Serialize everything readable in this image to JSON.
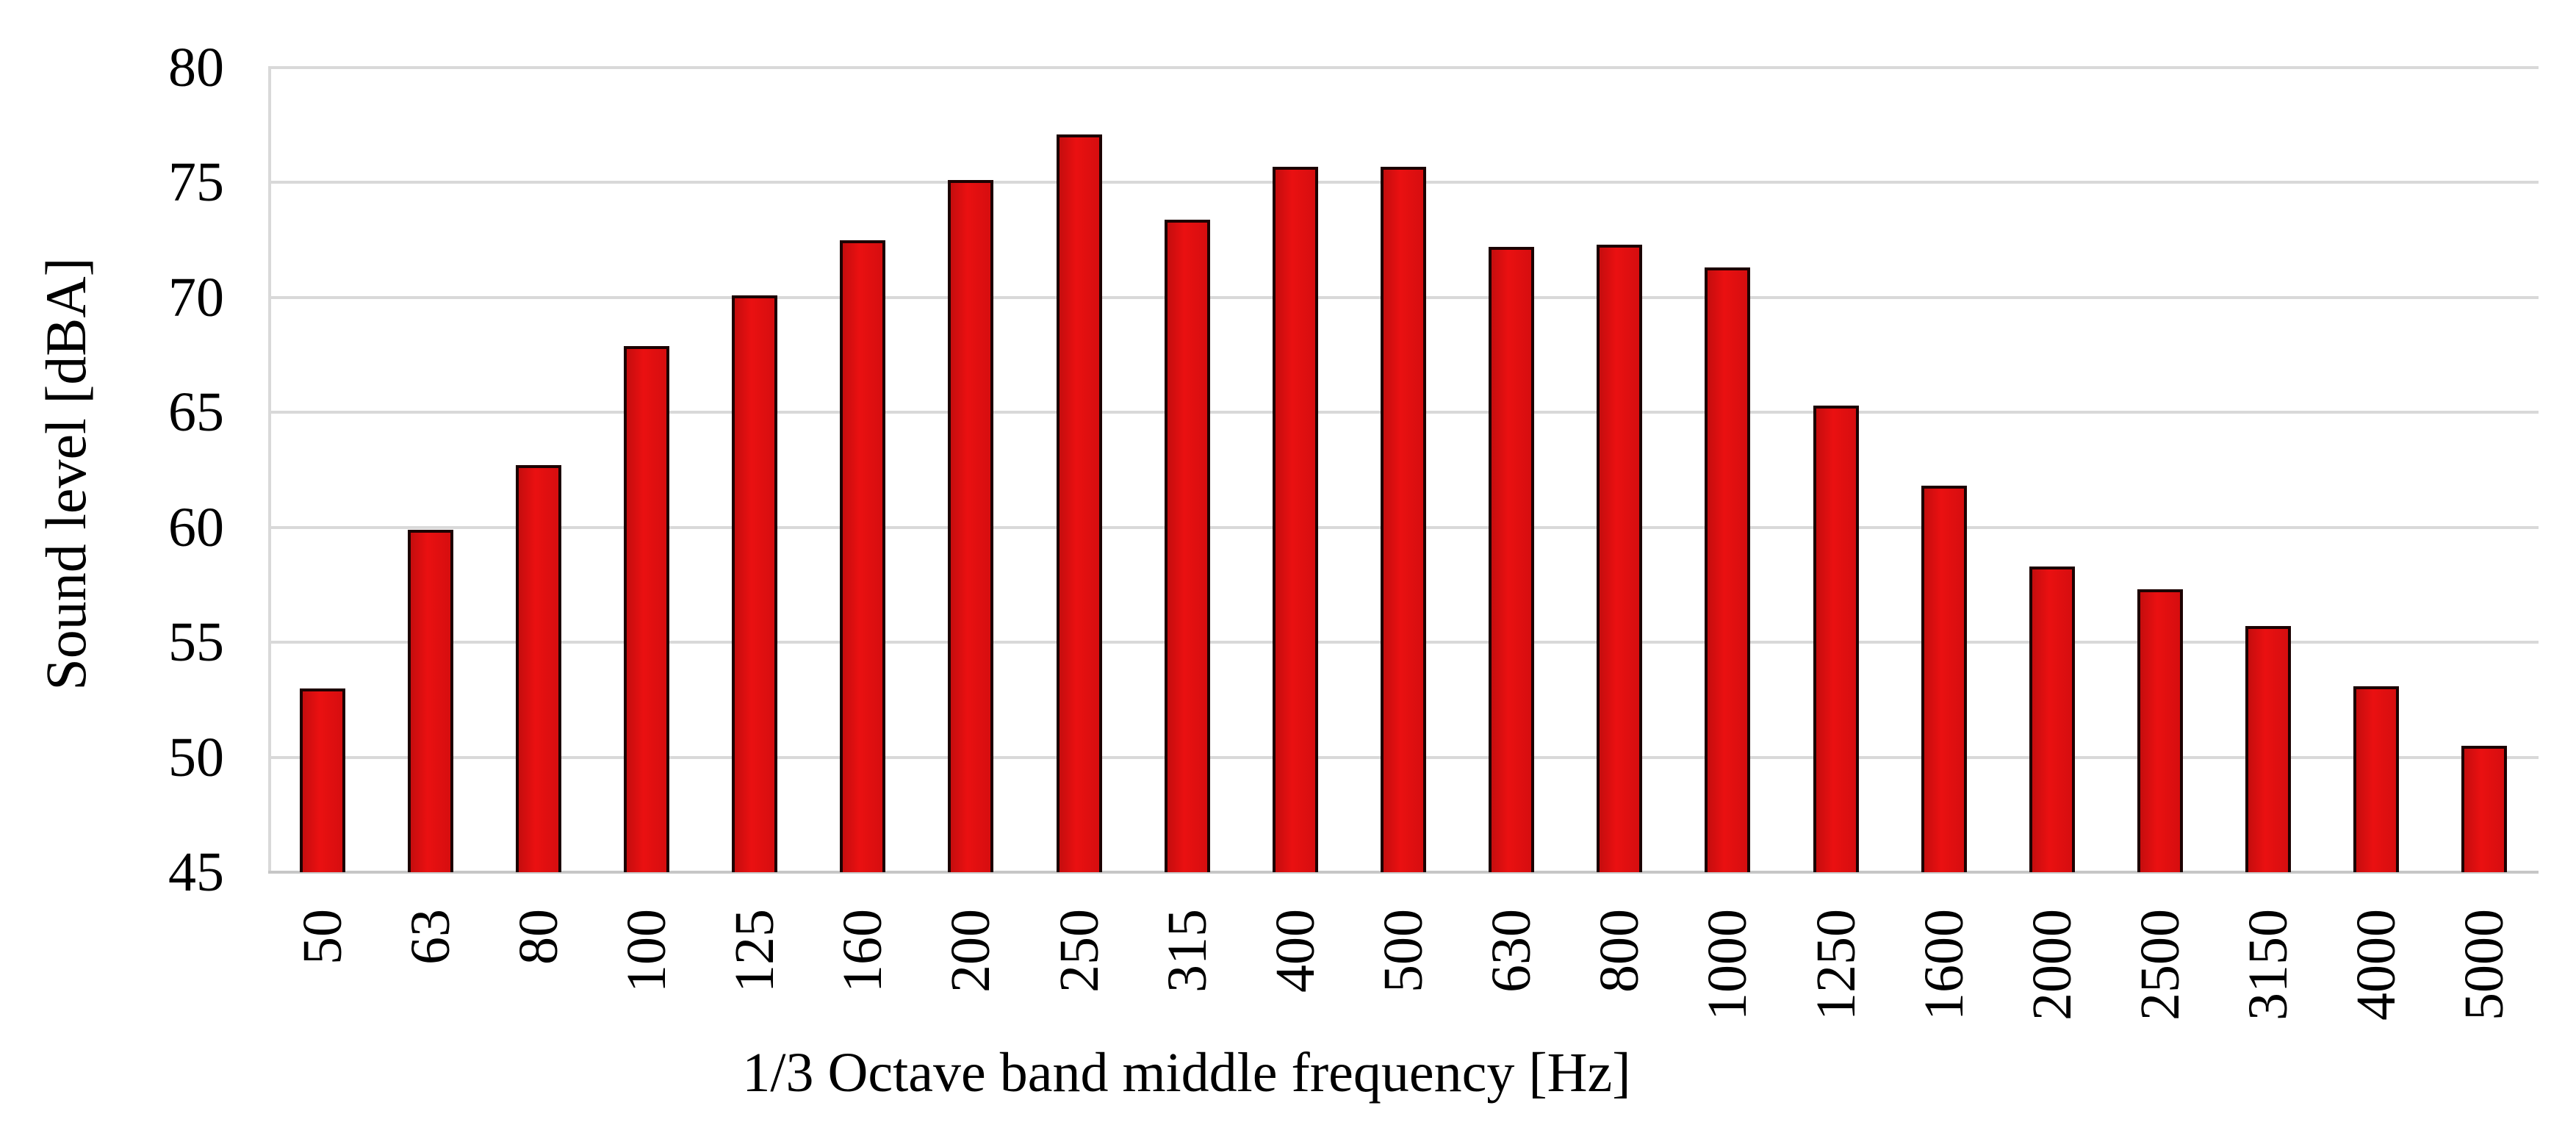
{
  "chart_data": {
    "type": "bar",
    "title": "",
    "xlabel": "1/3 Octave band middle frequency [Hz]",
    "ylabel": "Sound level [dBA]",
    "categories": [
      "50",
      "63",
      "80",
      "100",
      "125",
      "160",
      "200",
      "250",
      "315",
      "400",
      "500",
      "630",
      "800",
      "1000",
      "1250",
      "1600",
      "2000",
      "2500",
      "3150",
      "4000",
      "5000"
    ],
    "values": [
      53.0,
      59.9,
      62.7,
      67.9,
      70.1,
      72.5,
      75.1,
      77.1,
      73.4,
      75.7,
      75.7,
      72.2,
      72.3,
      71.3,
      65.3,
      61.8,
      58.3,
      57.3,
      55.7,
      53.1,
      50.5
    ],
    "ylim": [
      45,
      80
    ],
    "yticks": [
      80,
      75,
      70,
      65,
      60,
      55,
      50,
      45
    ],
    "grid": true,
    "legend": false,
    "colors": {
      "bar_fill": "#dc0e0f",
      "bar_border": "#1c0202",
      "gridline": "#d9d9d9",
      "axis_line": "#c7c7c7",
      "text": "#000000",
      "background": "#ffffff"
    }
  }
}
